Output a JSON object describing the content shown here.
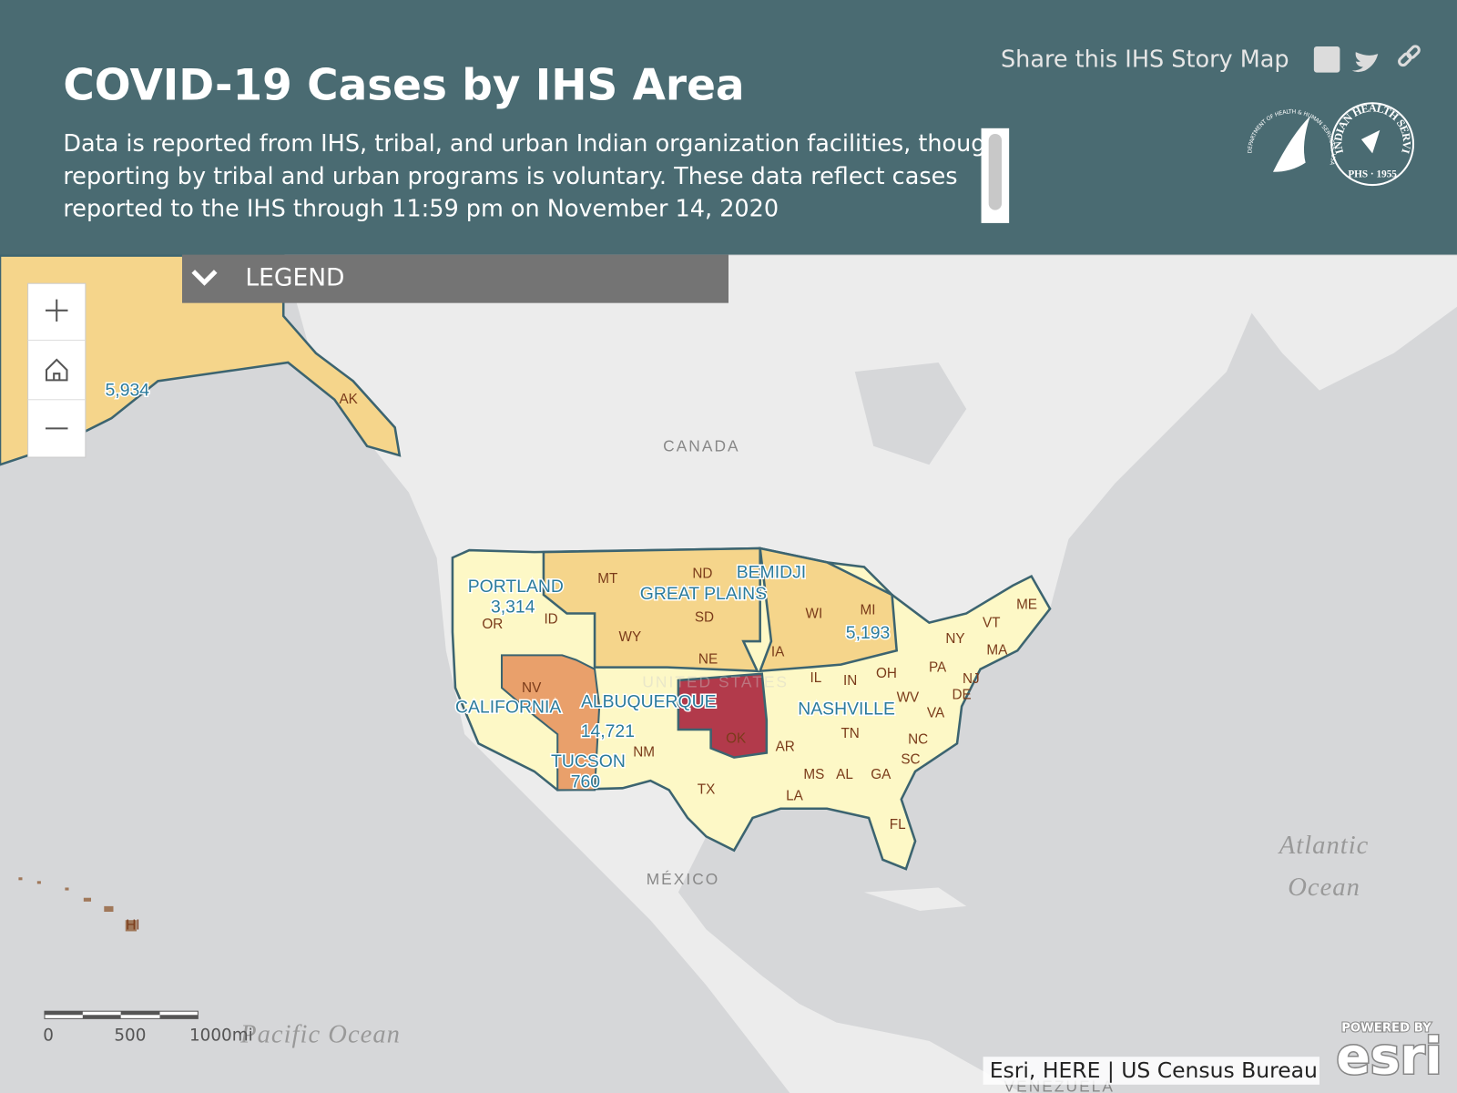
{
  "header": {
    "title": "COVID-19 Cases by IHS Area",
    "description": [
      "Data is reported from IHS, tribal, and urban Indian organization facilities, though",
      "reporting by tribal and urban programs is voluntary. These data reflect cases",
      "reported to the IHS through 11:59 pm on November 14, 2020"
    ],
    "share": "Share this IHS Story Map"
  },
  "logos": {
    "hhs": "DEPARTMENT OF HEALTH & HUMAN SERVICES, USA",
    "ihs": "INDIAN HEALTH SERVICE",
    "phs": "PHS · 1955"
  },
  "legend": {
    "label": "LEGEND"
  },
  "map": {
    "areas": [
      "PORTLAND",
      "GREAT PLAINS",
      "BEMIDJI",
      "CALIFORNIA",
      "ALBUQUERQUE",
      "NASHVILLE",
      "TUCSON"
    ],
    "cases": [
      "5,934",
      "3,314",
      "5,193",
      "14,721",
      "760"
    ],
    "states": [
      "AK",
      "OR",
      "ID",
      "MT",
      "WY",
      "ND",
      "SD",
      "NE",
      "NV",
      "NM",
      "TX",
      "OK",
      "IA",
      "WI",
      "MI",
      "IL",
      "IN",
      "OH",
      "PA",
      "NY",
      "VT",
      "ME",
      "MA",
      "NJ",
      "DE",
      "WV",
      "VA",
      "TN",
      "NC",
      "SC",
      "GA",
      "AL",
      "MS",
      "LA",
      "AR",
      "FL",
      "HI"
    ],
    "countries": [
      "CANADA",
      "UNITED STATES",
      "MÉXICO",
      "VENEZUELA"
    ],
    "oceans": [
      "Atlantic",
      "Ocean",
      "Pacific Ocean"
    ]
  },
  "scale": {
    "labels": [
      "0",
      "500",
      "1000mi"
    ]
  },
  "attribution": "Esri, HERE | US Census Bureau",
  "esri": {
    "powered": "POWERED BY",
    "logo": "esri"
  }
}
